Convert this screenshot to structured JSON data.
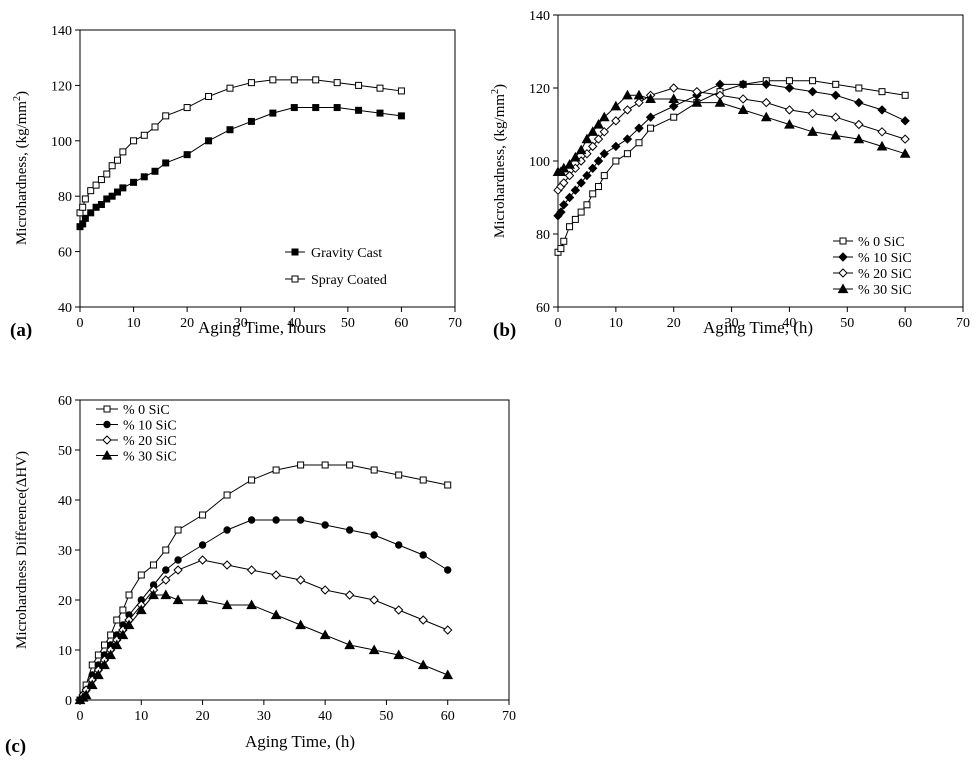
{
  "chart_data": [
    {
      "type": "line",
      "panel_label": "(a)",
      "xlabel": "Aging Time, hours",
      "ylabel": "Microhardness, (kg/mm2)",
      "ylabel_main": "Microhardness, (kg/mm",
      "ylabel_sup": "2",
      "ylabel_close": ")",
      "xlim": [
        0,
        70
      ],
      "ylim": [
        40,
        140
      ],
      "xticks": [
        "0",
        "10",
        "20",
        "30",
        "40",
        "50",
        "60",
        "70"
      ],
      "yticks": [
        "40",
        "60",
        "80",
        "100",
        "120",
        "140"
      ],
      "grid": false,
      "legend": "bottom-right",
      "series": [
        {
          "name": "Gravity Cast",
          "marker": "filled-square",
          "x": [
            0,
            0.5,
            1,
            2,
            3,
            4,
            5,
            6,
            7,
            8,
            10,
            12,
            14,
            16,
            20,
            24,
            28,
            32,
            36,
            40,
            44,
            48,
            52,
            56,
            60
          ],
          "y": [
            69,
            70,
            72,
            74,
            76,
            77,
            79,
            80,
            81.5,
            83,
            85,
            87,
            89,
            92,
            95,
            100,
            104,
            107,
            110,
            112,
            112,
            112,
            111,
            110,
            109
          ]
        },
        {
          "name": "Spray Coated",
          "marker": "open-square",
          "x": [
            0,
            0.5,
            1,
            2,
            3,
            4,
            5,
            6,
            7,
            8,
            10,
            12,
            14,
            16,
            20,
            24,
            28,
            32,
            36,
            40,
            44,
            48,
            52,
            56,
            60
          ],
          "y": [
            74,
            76,
            79,
            82,
            84,
            86,
            88,
            91,
            93,
            96,
            100,
            102,
            105,
            109,
            112,
            116,
            119,
            121,
            122,
            122,
            122,
            121,
            120,
            119,
            118
          ]
        }
      ]
    },
    {
      "type": "line",
      "panel_label": "(b)",
      "xlabel": "Aging Time, (h)",
      "ylabel": "Microhardness, (kg/mm2)",
      "ylabel_main": "Microhardness, (kg/mm",
      "ylabel_sup": "2",
      "ylabel_close": ")",
      "xlim": [
        0,
        70
      ],
      "ylim": [
        60,
        140
      ],
      "xticks": [
        "0",
        "10",
        "20",
        "30",
        "40",
        "50",
        "60",
        "70"
      ],
      "yticks": [
        "60",
        "80",
        "100",
        "120",
        "140"
      ],
      "grid": false,
      "legend": "bottom-right",
      "series": [
        {
          "name": "% 0 SiC",
          "marker": "open-square",
          "x": [
            0,
            0.5,
            1,
            2,
            3,
            4,
            5,
            6,
            7,
            8,
            10,
            12,
            14,
            16,
            20,
            24,
            28,
            32,
            36,
            40,
            44,
            48,
            52,
            56,
            60
          ],
          "y": [
            75,
            76,
            78,
            82,
            84,
            86,
            88,
            91,
            93,
            96,
            100,
            102,
            105,
            109,
            112,
            116,
            119,
            121,
            122,
            122,
            122,
            121,
            120,
            119,
            118
          ]
        },
        {
          "name": "% 10 SiC",
          "marker": "filled-diamond",
          "x": [
            0,
            0.5,
            1,
            2,
            3,
            4,
            5,
            6,
            7,
            8,
            10,
            12,
            14,
            16,
            20,
            24,
            28,
            32,
            36,
            40,
            44,
            48,
            52,
            56,
            60
          ],
          "y": [
            85,
            86,
            88,
            90,
            92,
            94,
            96,
            98,
            100,
            102,
            104,
            106,
            109,
            112,
            115,
            118,
            121,
            121,
            121,
            120,
            119,
            118,
            116,
            114,
            111
          ]
        },
        {
          "name": "% 20 SiC",
          "marker": "open-diamond",
          "x": [
            0,
            0.5,
            1,
            2,
            3,
            4,
            5,
            6,
            7,
            8,
            10,
            12,
            14,
            16,
            20,
            24,
            28,
            32,
            36,
            40,
            44,
            48,
            52,
            56,
            60
          ],
          "y": [
            92,
            93,
            94,
            96,
            98,
            100,
            102,
            104,
            106,
            108,
            111,
            114,
            116,
            118,
            120,
            119,
            118,
            117,
            116,
            114,
            113,
            112,
            110,
            108,
            106
          ]
        },
        {
          "name": "% 30 SiC",
          "marker": "filled-triangle",
          "x": [
            0,
            0.5,
            1,
            2,
            3,
            4,
            5,
            6,
            7,
            8,
            10,
            12,
            14,
            16,
            20,
            24,
            28,
            32,
            36,
            40,
            44,
            48,
            52,
            56,
            60
          ],
          "y": [
            97,
            97,
            98,
            99,
            101,
            103,
            106,
            108,
            110,
            112,
            115,
            118,
            118,
            117,
            117,
            116,
            116,
            114,
            112,
            110,
            108,
            107,
            106,
            104,
            102
          ]
        }
      ]
    },
    {
      "type": "line",
      "panel_label": "(c)",
      "xlabel": "Aging Time, (h)",
      "ylabel": "Microhardness Difference(ΔHV)",
      "xlim": [
        0,
        70
      ],
      "ylim": [
        0,
        60
      ],
      "xticks": [
        "0",
        "10",
        "20",
        "30",
        "40",
        "50",
        "60",
        "70"
      ],
      "yticks": [
        "0",
        "10",
        "20",
        "30",
        "40",
        "50",
        "60"
      ],
      "grid": false,
      "legend": "top-left",
      "series": [
        {
          "name": "% 0 SiC",
          "marker": "open-square",
          "x": [
            0,
            0.5,
            1,
            2,
            3,
            4,
            5,
            6,
            7,
            8,
            10,
            12,
            14,
            16,
            20,
            24,
            28,
            32,
            36,
            40,
            44,
            48,
            52,
            56,
            60
          ],
          "y": [
            0,
            1,
            3,
            7,
            9,
            11,
            13,
            16,
            18,
            21,
            25,
            27,
            30,
            34,
            37,
            41,
            44,
            46,
            47,
            47,
            47,
            46,
            45,
            44,
            43
          ]
        },
        {
          "name": "% 10 SiC",
          "marker": "filled-circle",
          "x": [
            0,
            0.5,
            1,
            2,
            3,
            4,
            5,
            6,
            7,
            8,
            10,
            12,
            14,
            16,
            20,
            24,
            28,
            32,
            36,
            40,
            44,
            48,
            52,
            56,
            60
          ],
          "y": [
            0,
            1,
            2,
            5,
            7,
            9,
            11,
            13,
            15,
            17,
            20,
            23,
            26,
            28,
            31,
            34,
            36,
            36,
            36,
            35,
            34,
            33,
            31,
            29,
            26
          ]
        },
        {
          "name": "% 20 SiC",
          "marker": "open-diamond",
          "x": [
            0,
            0.5,
            1,
            2,
            3,
            4,
            5,
            6,
            7,
            8,
            10,
            12,
            14,
            16,
            20,
            24,
            28,
            32,
            36,
            40,
            44,
            48,
            52,
            56,
            60
          ],
          "y": [
            0,
            1,
            2,
            4,
            6,
            8,
            10,
            12,
            14,
            16,
            19,
            22,
            24,
            26,
            28,
            27,
            26,
            25,
            24,
            22,
            21,
            20,
            18,
            16,
            14
          ]
        },
        {
          "name": "% 30 SiC",
          "marker": "filled-triangle",
          "x": [
            0,
            0.5,
            1,
            2,
            3,
            4,
            5,
            6,
            7,
            8,
            10,
            12,
            14,
            16,
            20,
            24,
            28,
            32,
            36,
            40,
            44,
            48,
            52,
            56,
            60
          ],
          "y": [
            0,
            0.5,
            1,
            3,
            5,
            7,
            9,
            11,
            13,
            15,
            18,
            21,
            21,
            20,
            20,
            19,
            19,
            17,
            15,
            13,
            11,
            10,
            9,
            7,
            5
          ]
        }
      ]
    }
  ]
}
